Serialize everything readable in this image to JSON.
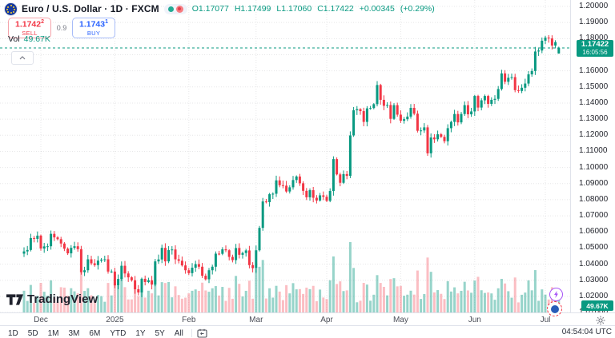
{
  "header": {
    "symbol_title": "Euro / U.S. Dollar · 1D · FXCM",
    "ohlc": {
      "o_label": "O",
      "o": "1.17077",
      "h_label": "H",
      "h": "1.17499",
      "l_label": "L",
      "l": "1.17060",
      "c_label": "C",
      "c": "1.17422",
      "change": "+0.00345",
      "change_pct": "(+0.29%)"
    },
    "sell_button": {
      "price": "1.1742",
      "sup": "2",
      "label": "SELL"
    },
    "spread": "0.9",
    "buy_button": {
      "price": "1.1743",
      "sup": "1",
      "label": "BUY"
    },
    "indicator": {
      "name": "Vol",
      "value": "49.67K"
    }
  },
  "watermark": {
    "text": "TradingView"
  },
  "toolbar": {
    "timeframes": [
      "1D",
      "5D",
      "1M",
      "3M",
      "6M",
      "YTD",
      "1Y",
      "5Y",
      "All"
    ],
    "clock": "04:54:04 UTC"
  },
  "chart_data": {
    "type": "candlestick",
    "title": "Euro / U.S. Dollar 1D FXCM",
    "timeframe": "1D",
    "y_axis": {
      "min": 1.01,
      "max": 1.2,
      "labels": [
        "1.20000",
        "1.19000",
        "1.18000",
        "1.16000",
        "1.15000",
        "1.14000",
        "1.13000",
        "1.12000",
        "1.11000",
        "1.10000",
        "1.09000",
        "1.08000",
        "1.07000",
        "1.06000",
        "1.05000",
        "1.04000",
        "1.03000",
        "1.02000",
        "1.01000"
      ]
    },
    "months": [
      {
        "label": "Dec",
        "index": 5
      },
      {
        "label": "2025",
        "index": 27
      },
      {
        "label": "Feb",
        "index": 49
      },
      {
        "label": "Mar",
        "index": 69
      },
      {
        "label": "Apr",
        "index": 90
      },
      {
        "label": "May",
        "index": 112
      },
      {
        "label": "Jun",
        "index": 134
      },
      {
        "label": "Jul",
        "index": 155
      }
    ],
    "first_open": 1.0465,
    "closes": [
      1.0479,
      1.0488,
      1.0562,
      1.0557,
      1.0577,
      1.0497,
      1.051,
      1.0511,
      1.0588,
      1.0566,
      1.0555,
      1.0528,
      1.0496,
      1.0467,
      1.0501,
      1.0511,
      1.0493,
      1.035,
      1.0362,
      1.043,
      1.0405,
      1.0394,
      1.0422,
      1.0428,
      1.043,
      1.0354,
      1.0354,
      1.0268,
      1.0308,
      1.039,
      1.0342,
      1.0318,
      1.03,
      1.0244,
      1.0224,
      1.0309,
      1.0289,
      1.03,
      1.0273,
      1.0417,
      1.0429,
      1.0501,
      1.0417,
      1.0487,
      1.0491,
      1.043,
      1.0421,
      1.0392,
      1.0362,
      1.0344,
      1.0378,
      1.04,
      1.0384,
      1.0328,
      1.0306,
      1.0362,
      1.0384,
      1.0465,
      1.0464,
      1.0492,
      1.0486,
      1.0445,
      1.0425,
      1.05,
      1.0458,
      1.0469,
      1.0485,
      1.0394,
      1.0375,
      1.0486,
      1.0625,
      1.0789,
      1.0785,
      1.0834,
      1.0837,
      1.092,
      1.089,
      1.0887,
      1.0851,
      1.0877,
      1.0922,
      1.0944,
      1.0902,
      1.0855,
      1.0815,
      1.0859,
      1.0812,
      1.0795,
      1.0827,
      1.0818,
      1.0793,
      1.0854,
      1.1052,
      1.0957,
      1.0905,
      1.0959,
      1.0948,
      1.1199,
      1.1355,
      1.1362,
      1.135,
      1.1283,
      1.1367,
      1.1369,
      1.1393,
      1.1512,
      1.142,
      1.1383,
      1.1388,
      1.1302,
      1.1387,
      1.1328,
      1.129,
      1.13,
      1.1316,
      1.137,
      1.1334,
      1.1228,
      1.123,
      1.1249,
      1.1088,
      1.1186,
      1.1175,
      1.1206,
      1.119,
      1.1163,
      1.1244,
      1.1283,
      1.1332,
      1.128,
      1.1332,
      1.1387,
      1.133,
      1.1348,
      1.1444,
      1.1372,
      1.1417,
      1.1444,
      1.1395,
      1.142,
      1.1426,
      1.1487,
      1.1584,
      1.1532,
      1.1557,
      1.1561,
      1.148,
      1.1475,
      1.1495,
      1.1521,
      1.1578,
      1.1599,
      1.172,
      1.1726,
      1.1787,
      1.1806,
      1.1801,
      1.1757,
      1.1778,
      1.17422
    ],
    "last_candle": {
      "open": 1.17077,
      "high": 1.17499,
      "low": 1.1706,
      "close": 1.17422
    },
    "last_price_label": {
      "price": "1.17422",
      "countdown": "16:05:56"
    },
    "volume_label": "49.67K",
    "colors": {
      "up": "#089981",
      "down": "#f23645",
      "vol_up": "rgba(8,153,129,0.42)",
      "vol_down": "rgba(242,54,69,0.32)",
      "grid": "rgba(19,23,34,0.10)",
      "axis_border": "#e0e3eb"
    }
  }
}
